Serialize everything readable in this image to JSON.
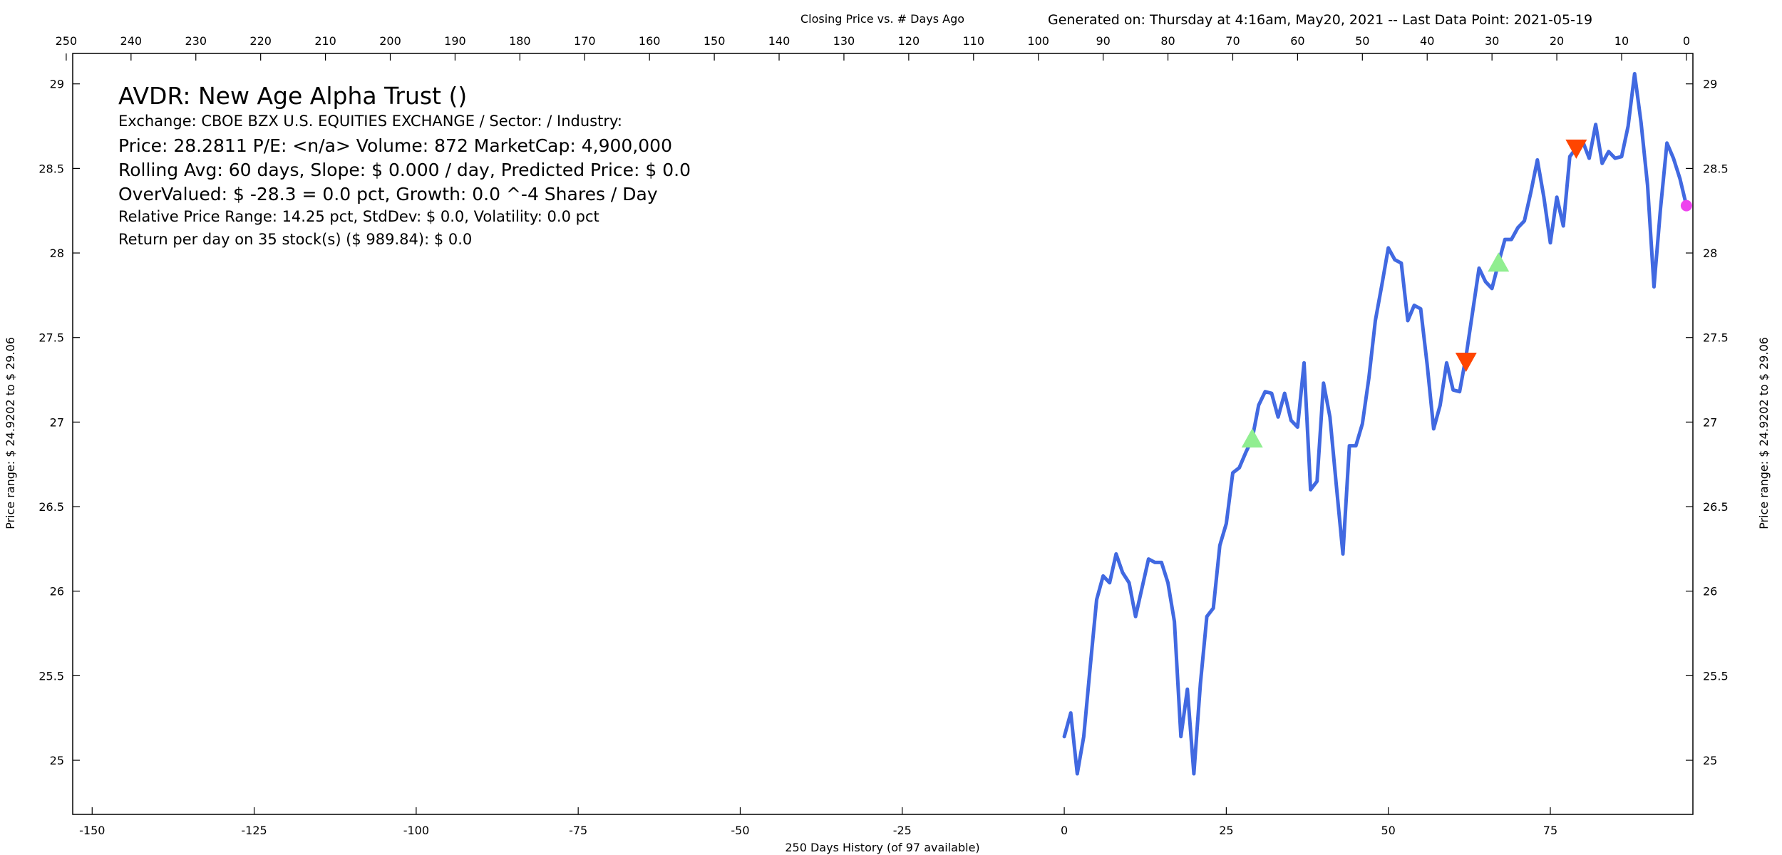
{
  "header": {
    "chart_title": "Closing Price vs. # Days Ago",
    "generated": "Generated on:  Thursday at  4:16am, May20, 2021  --  Last Data Point:  2021-05-19"
  },
  "info": {
    "title": "AVDR:  New Age Alpha Trust  ()",
    "exchange": "Exchange: CBOE BZX U.S. EQUITIES EXCHANGE  /  Sector:   /  Industry:",
    "price": "Price: 28.2811  P/E: <n/a> Volume: 872  MarketCap: 4,900,000",
    "rolling": "Rolling Avg: 60 days, Slope: $ 0.000 / day, Predicted Price: $ 0.0",
    "overvalued": "OverValued: $ -28.3 = 0.0 pct,  Growth: 0.0 ^-4 Shares / Day",
    "range": "Relative Price Range: 14.25 pct, StdDev: $ 0.0, Volatility: 0.0 pct",
    "return": "Return per day on 35 stock(s) ($ 989.84): $ 0.0"
  },
  "colors": {
    "line": "#4169e1",
    "buy_marker": "#90ee90",
    "sell_marker": "#ff4500",
    "last_point": "#ee44ee"
  },
  "chart_data": {
    "type": "line",
    "xlabel": "250 Days History (of 97 available)",
    "ylabel_left": "Price range:  $ 24.9202  to  $ 29.06",
    "ylabel_right": "Price range: $ 24.9202  to  $ 29.06",
    "x_bottom_ticks": [
      -150,
      -125,
      -100,
      -75,
      -50,
      -25,
      0,
      25,
      50,
      75
    ],
    "x_top_ticks": [
      250,
      240,
      230,
      220,
      210,
      200,
      190,
      180,
      170,
      160,
      150,
      140,
      130,
      120,
      110,
      100,
      90,
      80,
      70,
      60,
      50,
      40,
      30,
      20,
      10,
      0
    ],
    "y_ticks": [
      25,
      25.5,
      26,
      26.5,
      27,
      27.5,
      28,
      28.5,
      29
    ],
    "y_tick_labels": [
      "25",
      "25.5",
      "26",
      "26.5",
      "27",
      "27.5",
      "28",
      "28.5",
      "29"
    ],
    "xlim": [
      -153,
      97
    ],
    "ylim": [
      24.68,
      29.18
    ],
    "grid": false,
    "series": [
      {
        "x": [
          0,
          1,
          2,
          3,
          4,
          5,
          6,
          7,
          8,
          9,
          10,
          11,
          12,
          13,
          14,
          15,
          16,
          17,
          18,
          19,
          20,
          21,
          22,
          23,
          24,
          25,
          26,
          27,
          28,
          29,
          30,
          31,
          32,
          33,
          34,
          35,
          36,
          37,
          38,
          39,
          40,
          41,
          42,
          43,
          44,
          45,
          46,
          47,
          48,
          49,
          50,
          51,
          52,
          53,
          54,
          55,
          56,
          57,
          58,
          59,
          60,
          61,
          62,
          63,
          64,
          65,
          66,
          67,
          68,
          69,
          70,
          71,
          72,
          73,
          74,
          75,
          76,
          77,
          78,
          79,
          80,
          81,
          82,
          83,
          84,
          85,
          86,
          87,
          88,
          89,
          90,
          91,
          92,
          93,
          94,
          95,
          96
        ],
        "values": [
          25.14,
          25.28,
          24.92,
          25.14,
          25.55,
          25.95,
          26.09,
          26.05,
          26.22,
          26.11,
          26.05,
          25.85,
          26.02,
          26.19,
          26.17,
          26.17,
          26.05,
          25.82,
          25.14,
          25.42,
          24.92,
          25.45,
          25.85,
          25.9,
          26.27,
          26.4,
          26.7,
          26.73,
          26.82,
          26.9,
          27.1,
          27.18,
          27.17,
          27.03,
          27.17,
          27.01,
          26.97,
          27.35,
          26.6,
          26.65,
          27.23,
          27.03,
          26.62,
          26.22,
          26.86,
          26.86,
          26.99,
          27.26,
          27.6,
          27.81,
          28.03,
          27.96,
          27.94,
          27.6,
          27.69,
          27.67,
          27.34,
          26.96,
          27.1,
          27.35,
          27.19,
          27.18,
          27.39,
          27.65,
          27.91,
          27.83,
          27.79,
          27.94,
          28.08,
          28.08,
          28.15,
          28.19,
          28.36,
          28.55,
          28.33,
          28.06,
          28.33,
          28.16,
          28.57,
          28.62,
          28.66,
          28.56,
          28.76,
          28.53,
          28.6,
          28.56,
          28.57,
          28.75,
          29.06,
          28.77,
          28.4,
          27.8,
          28.26,
          28.65,
          28.56,
          28.44,
          28.28
        ]
      }
    ],
    "buy_markers": [
      {
        "x": 29,
        "y": 26.9
      },
      {
        "x": 67,
        "y": 27.94
      }
    ],
    "sell_markers": [
      {
        "x": 62,
        "y": 27.36
      },
      {
        "x": 79,
        "y": 28.62
      }
    ],
    "last_point": {
      "x": 96,
      "y": 28.28
    }
  }
}
